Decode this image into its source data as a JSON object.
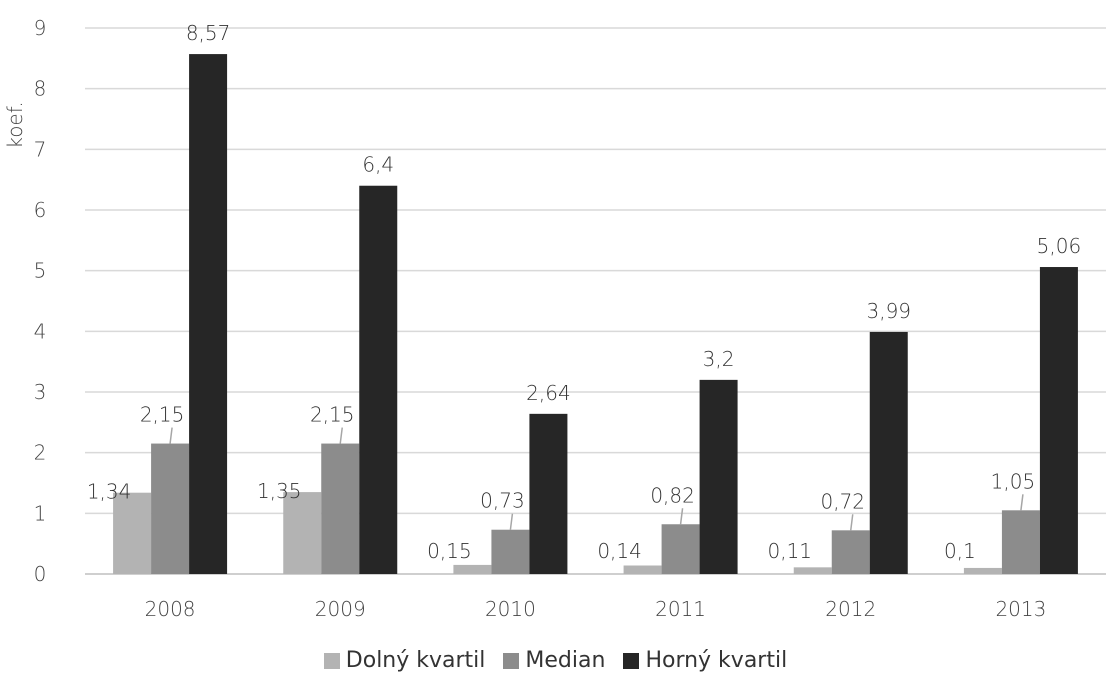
{
  "chart_data": {
    "type": "bar",
    "categories": [
      "2008",
      "2009",
      "2010",
      "2011",
      "2012",
      "2013"
    ],
    "series": [
      {
        "name": "Dolný kvartil",
        "values": [
          1.34,
          1.35,
          0.15,
          0.14,
          0.11,
          0.1
        ],
        "labels": [
          "1,34",
          "1,35",
          "0,15",
          "0,14",
          "0,11",
          "0,1"
        ],
        "color": "#b3b3b3"
      },
      {
        "name": "Median",
        "values": [
          2.15,
          2.15,
          0.73,
          0.82,
          0.72,
          1.05
        ],
        "labels": [
          "2,15",
          "2,15",
          "0,73",
          "0,82",
          "0,72",
          "1,05"
        ],
        "color": "#8c8c8c"
      },
      {
        "name": "Horný kvartil",
        "values": [
          8.57,
          6.4,
          2.64,
          3.2,
          3.99,
          5.06
        ],
        "labels": [
          "8,57",
          "6,4",
          "2,64",
          "3,2",
          "3,99",
          "5,06"
        ],
        "color": "#262626"
      }
    ],
    "ylabel": "koef.",
    "xlabel": "",
    "ylim": [
      0,
      9
    ],
    "yticks": [
      "0",
      "1",
      "2",
      "3",
      "4",
      "5",
      "6",
      "7",
      "8",
      "9"
    ],
    "grid": true,
    "legend_position": "bottom"
  }
}
